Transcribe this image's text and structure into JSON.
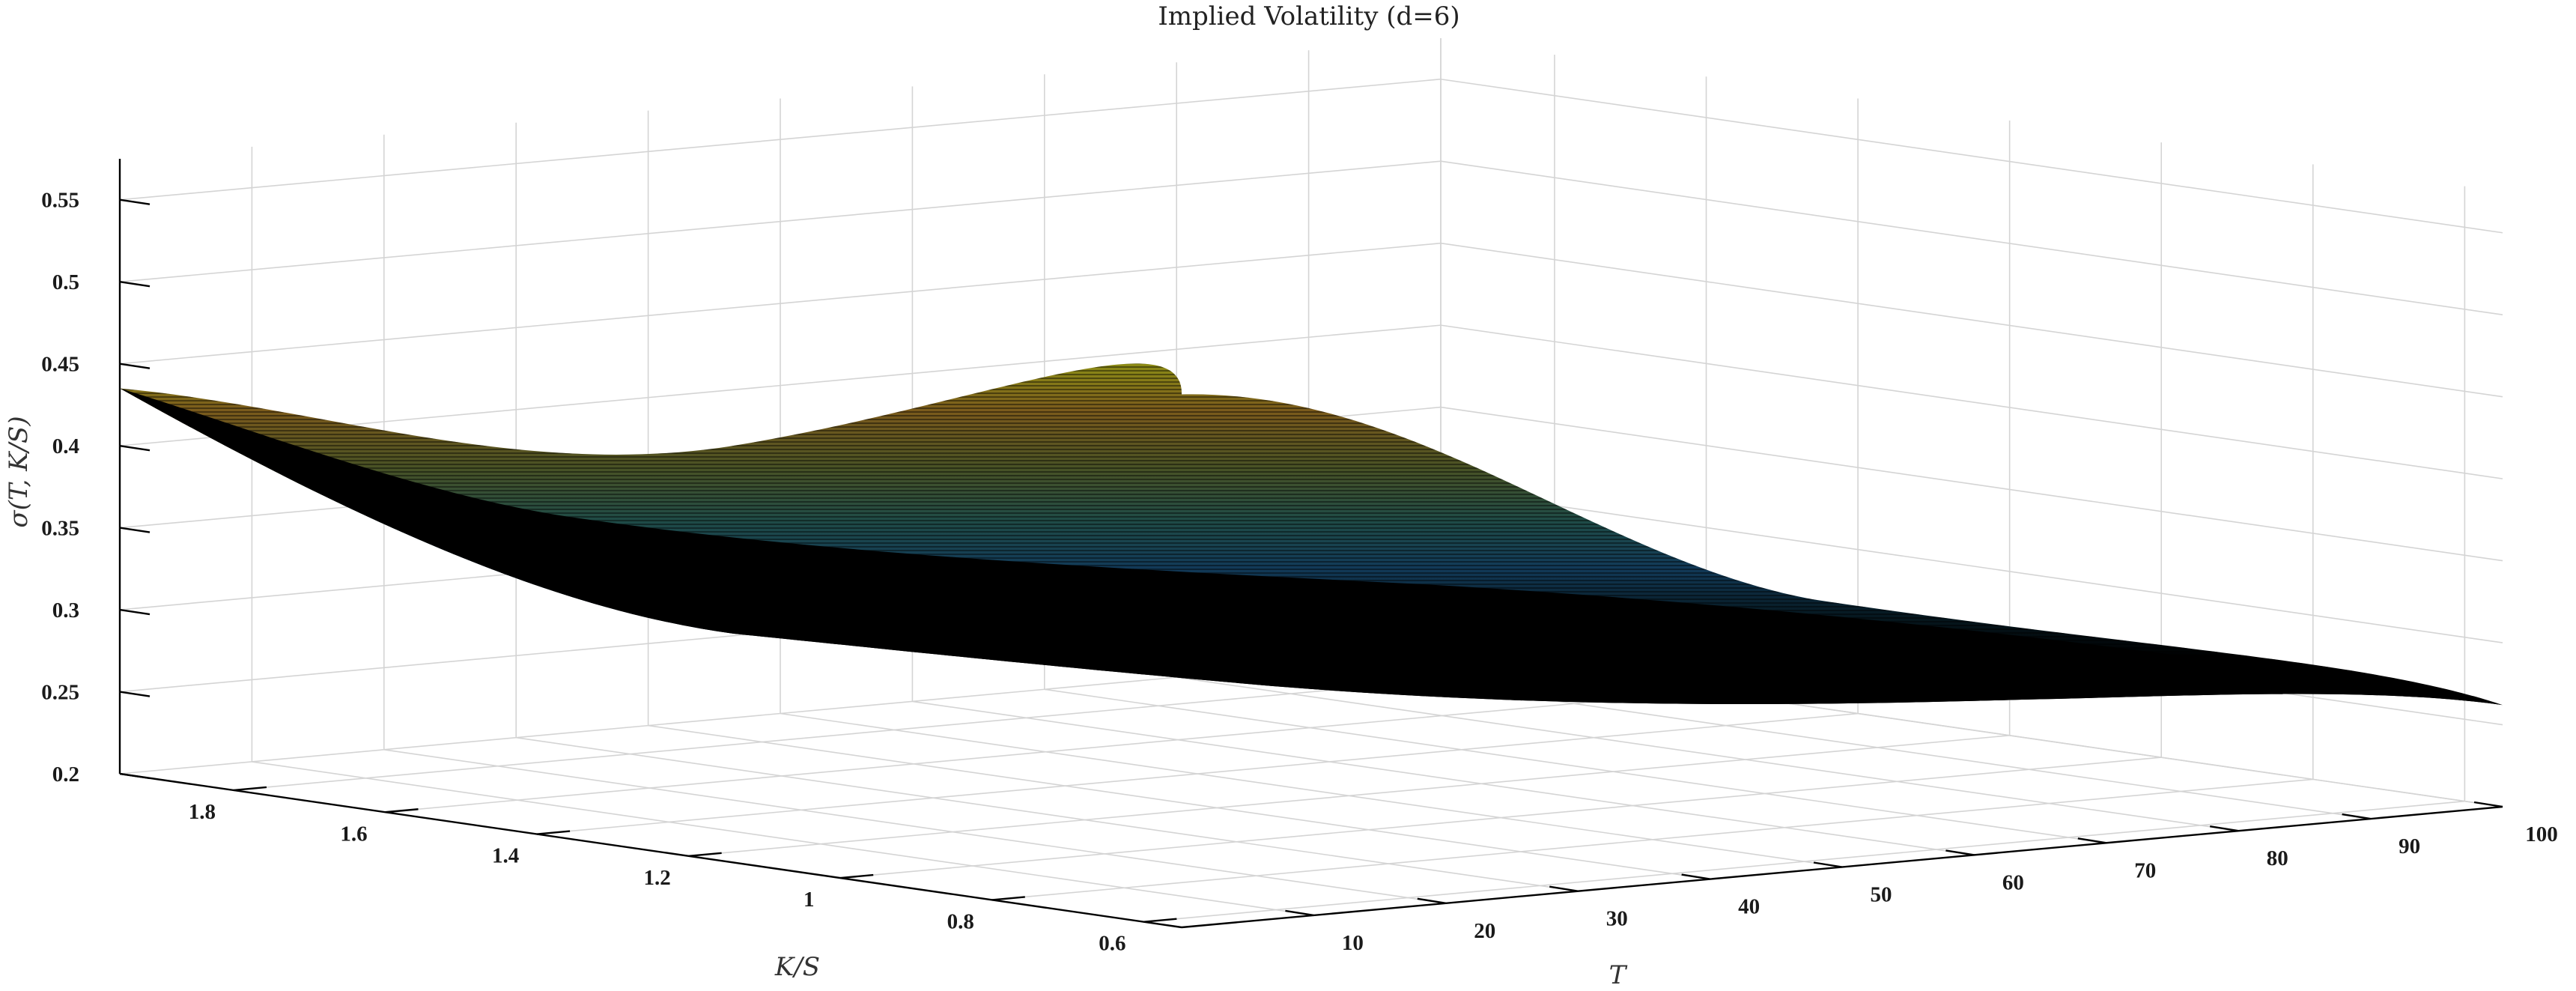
{
  "chart_data": {
    "type": "surface",
    "title": "Implied Volatility (d=6)",
    "xlabel": "K/S",
    "ylabel": "T",
    "zlabel": "σ(T, K/S)",
    "x_ticks": [
      "1.8",
      "1.6",
      "1.4",
      "1.2",
      "1",
      "0.8",
      "0.6"
    ],
    "y_ticks": [
      "10",
      "20",
      "30",
      "40",
      "50",
      "60",
      "70",
      "80",
      "90",
      "100"
    ],
    "z_ticks": [
      "0.2",
      "0.25",
      "0.3",
      "0.35",
      "0.4",
      "0.45",
      "0.5",
      "0.55"
    ],
    "xlim": [
      0.55,
      1.95
    ],
    "ylim": [
      0,
      100
    ],
    "zlim": [
      0.2,
      0.575
    ],
    "grid": true,
    "colormap": "parula (dark, dense black mesh edges)",
    "surface_points": [
      {
        "k_over_s": 1.95,
        "t": 0,
        "sigma": 0.435
      },
      {
        "k_over_s": 1.95,
        "t": 100,
        "sigma": 0.305
      },
      {
        "k_over_s": 0.55,
        "t": 0,
        "sigma": 0.525
      },
      {
        "k_over_s": 0.55,
        "t": 100,
        "sigma": 0.262
      },
      {
        "k_over_s": 1.0,
        "t": 50,
        "sigma": 0.255
      }
    ]
  }
}
